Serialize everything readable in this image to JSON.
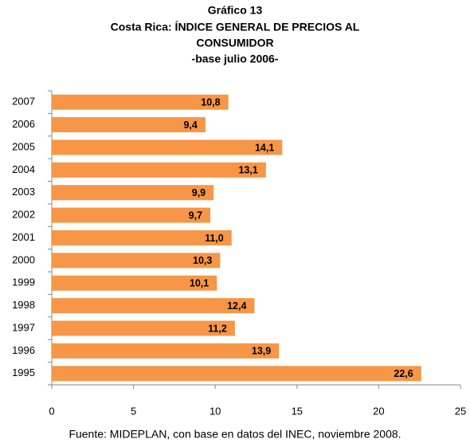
{
  "chart_data": {
    "type": "hbar",
    "title": [
      "Gráfico 13",
      "Costa Rica: ÍNDICE GENERAL DE PRECIOS AL",
      "CONSUMIDOR",
      "-base julio 2006-"
    ],
    "categories": [
      "2007",
      "2006",
      "2005",
      "2004",
      "2003",
      "2002",
      "2001",
      "2000",
      "1999",
      "1998",
      "1997",
      "1996",
      "1995"
    ],
    "values": [
      10.8,
      9.4,
      14.1,
      13.1,
      9.9,
      9.7,
      11.0,
      10.3,
      10.1,
      12.4,
      11.2,
      13.9,
      22.6
    ],
    "value_labels": [
      "10,8",
      "9,4",
      "14,1",
      "13,1",
      "9,9",
      "9,7",
      "11,0",
      "10,3",
      "10,1",
      "12,4",
      "11,2",
      "13,9",
      "22,6"
    ],
    "color": "#f79646",
    "xlim": [
      0,
      25
    ],
    "xticks": [
      0,
      5,
      10,
      15,
      20,
      25
    ],
    "grid": false,
    "source": "Fuente: MIDEPLAN, con base en datos del INEC, noviembre 2008."
  }
}
